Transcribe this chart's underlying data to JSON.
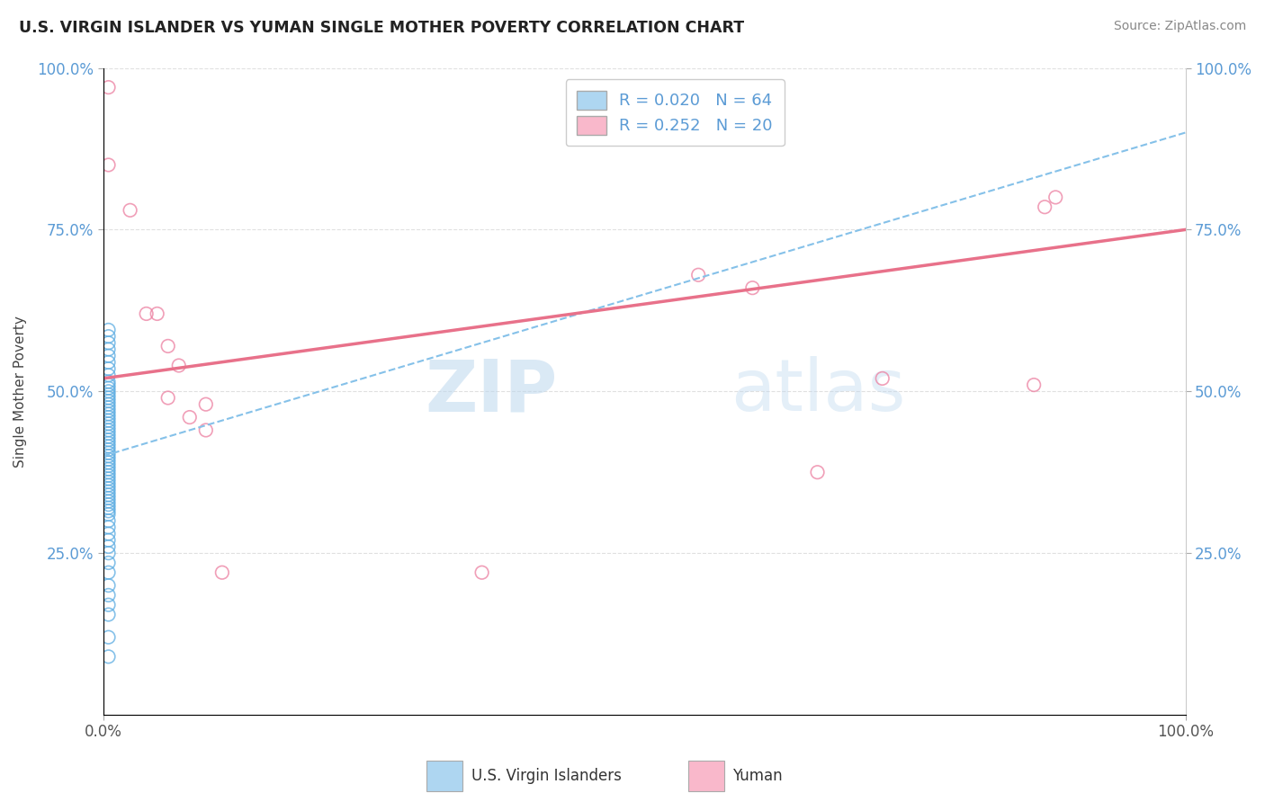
{
  "title": "U.S. VIRGIN ISLANDER VS YUMAN SINGLE MOTHER POVERTY CORRELATION CHART",
  "source": "Source: ZipAtlas.com",
  "ylabel": "Single Mother Poverty",
  "xlim": [
    0.0,
    1.0
  ],
  "ylim": [
    0.0,
    1.0
  ],
  "ytick_positions": [
    0.25,
    0.5,
    0.75,
    1.0
  ],
  "ytick_labels": [
    "25.0%",
    "50.0%",
    "75.0%",
    "100.0%"
  ],
  "blue_fill_color": "#AED6F1",
  "blue_edge_color": "#5DADE2",
  "pink_fill_color": "#F9B8CB",
  "pink_edge_color": "#EC7FA0",
  "blue_line_color": "#85C1E9",
  "pink_line_color": "#E8718A",
  "tick_color": "#5B9BD5",
  "legend_r1": "R = 0.020",
  "legend_n1": "N = 64",
  "legend_r2": "R = 0.252",
  "legend_n2": "N = 20",
  "blue_line_x0": 0.0,
  "blue_line_y0": 0.4,
  "blue_line_x1": 1.0,
  "blue_line_y1": 0.9,
  "pink_line_x0": 0.0,
  "pink_line_y0": 0.52,
  "pink_line_x1": 1.0,
  "pink_line_y1": 0.75,
  "blue_scatter_x": [
    0.005,
    0.005,
    0.005,
    0.005,
    0.005,
    0.005,
    0.005,
    0.005,
    0.005,
    0.005,
    0.005,
    0.005,
    0.005,
    0.005,
    0.005,
    0.005,
    0.005,
    0.005,
    0.005,
    0.005,
    0.005,
    0.005,
    0.005,
    0.005,
    0.005,
    0.005,
    0.005,
    0.005,
    0.005,
    0.005,
    0.005,
    0.005,
    0.005,
    0.005,
    0.005,
    0.005,
    0.005,
    0.005,
    0.005,
    0.005,
    0.005,
    0.005,
    0.005,
    0.005,
    0.005,
    0.005,
    0.005,
    0.005,
    0.005,
    0.005,
    0.005,
    0.005,
    0.005,
    0.005,
    0.005,
    0.005,
    0.005,
    0.005,
    0.005,
    0.005,
    0.005,
    0.005,
    0.005,
    0.005
  ],
  "blue_scatter_y": [
    0.595,
    0.585,
    0.575,
    0.565,
    0.555,
    0.545,
    0.535,
    0.525,
    0.515,
    0.51,
    0.505,
    0.5,
    0.495,
    0.49,
    0.485,
    0.48,
    0.475,
    0.47,
    0.465,
    0.46,
    0.455,
    0.45,
    0.445,
    0.44,
    0.435,
    0.43,
    0.425,
    0.42,
    0.415,
    0.41,
    0.405,
    0.4,
    0.395,
    0.39,
    0.385,
    0.38,
    0.375,
    0.37,
    0.365,
    0.36,
    0.355,
    0.35,
    0.345,
    0.34,
    0.335,
    0.33,
    0.325,
    0.32,
    0.315,
    0.31,
    0.3,
    0.29,
    0.28,
    0.27,
    0.26,
    0.25,
    0.235,
    0.22,
    0.2,
    0.185,
    0.17,
    0.155,
    0.12,
    0.09
  ],
  "pink_scatter_x": [
    0.005,
    0.005,
    0.025,
    0.04,
    0.05,
    0.06,
    0.06,
    0.07,
    0.08,
    0.095,
    0.095,
    0.11,
    0.35,
    0.55,
    0.6,
    0.66,
    0.72,
    0.86,
    0.87,
    0.88
  ],
  "pink_scatter_y": [
    0.97,
    0.85,
    0.78,
    0.62,
    0.62,
    0.57,
    0.49,
    0.54,
    0.46,
    0.48,
    0.44,
    0.22,
    0.22,
    0.68,
    0.66,
    0.375,
    0.52,
    0.51,
    0.785,
    0.8
  ],
  "watermark_zip": "ZIP",
  "watermark_atlas": "atlas",
  "background_color": "#FFFFFF",
  "grid_color": "#E0E0E0"
}
